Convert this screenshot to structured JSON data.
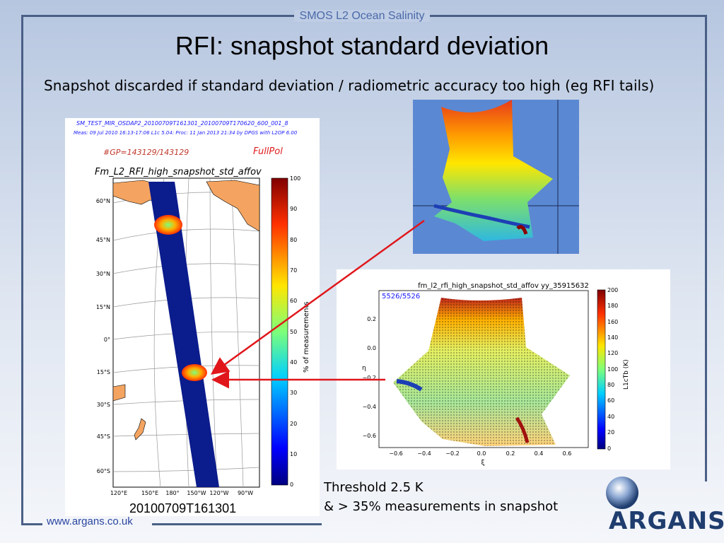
{
  "header": {
    "label": "SMOS L2 Ocean Salinity",
    "title": "RFI: snapshot standard deviation",
    "subtitle": "Snapshot discarded if standard deviation / radiometric accuracy too high (eg RFI tails)"
  },
  "map": {
    "file_name": "SM_TEST_MIR_OSDAP2_20100709T161301_20100709T170620_600_001_8",
    "meta": "Meas: 09 Jul 2010 16:13-17:06 L1c 5.04: Proc: 11 Jan 2013 21:34 by DPGS with L2OP 6.00",
    "gp_count": "#GP=143129/143129",
    "mode": "FullPol",
    "plot_title": "Fm_L2_RFI_high_snapshot_std_affov",
    "lat_labels": [
      "60°N",
      "45°N",
      "30°N",
      "15°N",
      "0°",
      "15°S",
      "30°S",
      "45°S",
      "60°S"
    ],
    "lon_labels": [
      "120°E",
      "150°E",
      "180°",
      "150°W",
      "120°W",
      "90°W"
    ],
    "colorbar_ticks": [
      "100",
      "90",
      "80",
      "70",
      "60",
      "50",
      "40",
      "30",
      "20",
      "10",
      "0"
    ],
    "colorbar_label": "% of measurements",
    "date": "20100709T161301"
  },
  "scatter": {
    "title": "fm_l2_rfi_high_snapshot_std_affov yy_35915632",
    "count": "5526/5526",
    "y_ticks": [
      "0.2",
      "0.0",
      "−0.2",
      "−0.4",
      "−0.6"
    ],
    "x_ticks": [
      "−0.6",
      "−0.4",
      "−0.2",
      "0.0",
      "0.2",
      "0.4",
      "0.6"
    ],
    "x_label": "ξ",
    "y_label": "η",
    "colorbar_ticks": [
      "200",
      "180",
      "160",
      "140",
      "120",
      "100",
      "80",
      "60",
      "40",
      "20",
      "0"
    ],
    "colorbar_label": "L1cTb (K)"
  },
  "notes": {
    "threshold": "Threshold 2.5 K",
    "measurements": "& > 35% measurements in snapshot"
  },
  "footer": {
    "url": "www.argans.co.uk",
    "logo": "ARGANS"
  },
  "colors": {
    "frame": "#4a5f86",
    "arrow": "#e0161b",
    "swath": "#0b1c8c",
    "url": "#2a46a0"
  }
}
